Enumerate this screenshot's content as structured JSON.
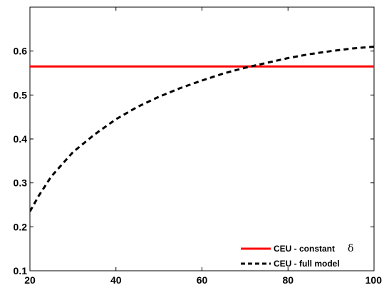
{
  "chart_data": {
    "type": "line",
    "title": "",
    "xlabel": "",
    "ylabel": "",
    "xlim": [
      20,
      100
    ],
    "ylim": [
      0.1,
      0.7
    ],
    "xticks": [
      20,
      40,
      60,
      80,
      100
    ],
    "yticks": [
      0.1,
      0.2,
      0.3,
      0.4,
      0.5,
      0.6
    ],
    "xtick_labels": [
      "20",
      "40",
      "60",
      "80",
      "100"
    ],
    "ytick_labels": [
      "0.1",
      "0.2",
      "0.3",
      "0.4",
      "0.5",
      "0.6"
    ],
    "grid": false,
    "legend_position": "bottom-right",
    "series": [
      {
        "name": "CEU - constant",
        "name_symbol": "δ",
        "color": "#ff0000",
        "style": "solid",
        "x": [
          20,
          100
        ],
        "y": [
          0.565,
          0.565
        ]
      },
      {
        "name": "CEU - full model",
        "color": "#000000",
        "style": "dashed",
        "x": [
          20,
          22,
          25,
          30,
          35,
          40,
          45,
          50,
          55,
          60,
          65,
          70,
          75,
          80,
          85,
          90,
          95,
          100
        ],
        "y": [
          0.235,
          0.27,
          0.315,
          0.37,
          0.41,
          0.445,
          0.473,
          0.496,
          0.516,
          0.533,
          0.549,
          0.562,
          0.573,
          0.584,
          0.593,
          0.6,
          0.606,
          0.61
        ]
      }
    ]
  }
}
